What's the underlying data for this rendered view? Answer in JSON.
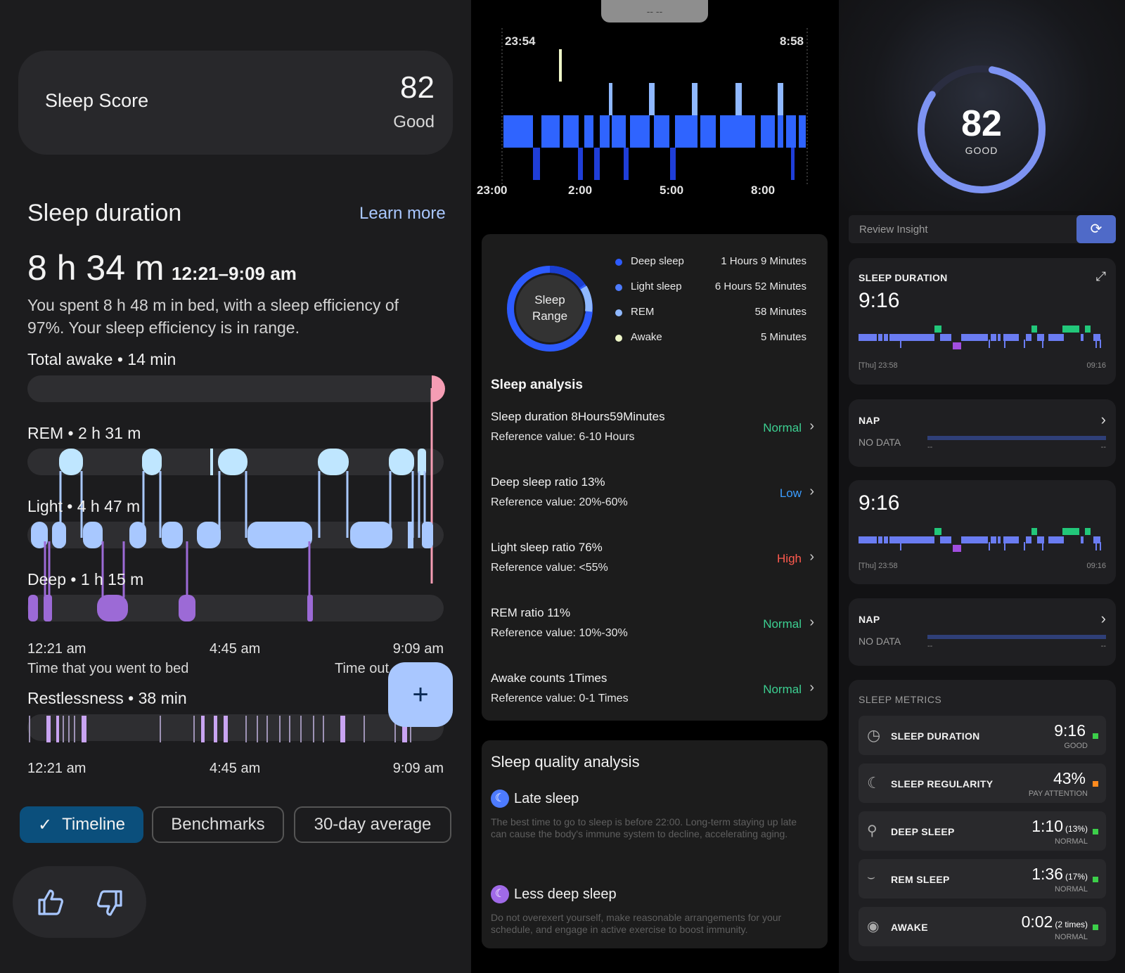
{
  "left": {
    "score_label": "Sleep Score",
    "score_value": "82",
    "score_rating": "Good",
    "duration_title": "Sleep duration",
    "learn_more": "Learn more",
    "duration_value": "8 h 34 m",
    "duration_range": "12:21–9:09 am",
    "description_line1": "You spent 8 h 48 m in bed, with a sleep efficiency of",
    "description_line2": "97%. Your sleep efficiency is in range.",
    "awake_label": "Total awake • 14 min",
    "rem_label": "REM • 2 h 31 m",
    "light_label": "Light • 4 h 47 m",
    "deep_label": "Deep • 1 h 15 m",
    "time_start": "12:21 am",
    "time_mid": "4:45 am",
    "time_end": "9:09 am",
    "bed_caption": "Time that you went to bed",
    "out_caption": "Time out",
    "restless_label": "Restlessness • 38 min",
    "tabs": [
      "Timeline",
      "Benchmarks",
      "30-day average"
    ],
    "fab_glyph": "+",
    "colors": {
      "rem": "#bfe6ff",
      "light": "#a8c8ff",
      "deep": "#9c6ad6",
      "awake": "#f59db4",
      "tab_active": "#0b4f7c"
    }
  },
  "middle": {
    "top_handle": "-- --",
    "chart_start_time": "23:54",
    "chart_end_time": "8:58",
    "axis_labels": [
      "23:00",
      "2:00",
      "5:00",
      "8:00"
    ],
    "ring_label_1": "Sleep",
    "ring_label_2": "Range",
    "legend": [
      {
        "name": "Deep sleep",
        "value": "1 Hours 9 Minutes",
        "color": "#2d5bff"
      },
      {
        "name": "Light sleep",
        "value": "6 Hours 52 Minutes",
        "color": "#4d7bff"
      },
      {
        "name": "REM",
        "value": "58 Minutes",
        "color": "#8fb8ff"
      },
      {
        "name": "Awake",
        "value": "5 Minutes",
        "color": "#eef6c8"
      }
    ],
    "analysis_title": "Sleep analysis",
    "analysis": [
      {
        "label": "Sleep duration  8Hours59Minutes",
        "ref": "Reference value:  6-10 Hours",
        "status": "Normal",
        "color": "#3ccf91"
      },
      {
        "label": "Deep sleep ratio  13%",
        "ref": "Reference value:  20%-60%",
        "status": "Low",
        "color": "#3b9dff"
      },
      {
        "label": "Light sleep ratio  76%",
        "ref": "Reference value:  <55%",
        "status": "High",
        "color": "#ff5a4e"
      },
      {
        "label": "REM ratio  11%",
        "ref": "Reference value:  10%-30%",
        "status": "Normal",
        "color": "#3ccf91"
      },
      {
        "label": "Awake counts  1Times",
        "ref": "Reference value:  0-1 Times",
        "status": "Normal",
        "color": "#3ccf91"
      }
    ],
    "quality_title": "Sleep quality analysis",
    "quality": [
      {
        "title": "Late sleep",
        "text": "The best time to go to sleep is before 22:00. Long-term staying up late can cause the body's immune system to decline, accelerating aging."
      },
      {
        "title": "Less deep sleep",
        "text": "Do not overexert yourself, make reasonable arrangements for your schedule, and engage in active exercise to boost immunity."
      }
    ]
  },
  "right": {
    "ring_value": "82",
    "ring_rating": "GOOD",
    "review_insight": "Review Insight",
    "duration_title": "SLEEP DURATION",
    "duration_value": "9:16",
    "hypno_start": "[Thu] 23:58",
    "hypno_end": "09:16",
    "nap_title": "NAP",
    "nap_no_data": "NO DATA",
    "nap_dash": "--",
    "second_value": "9:16",
    "metrics_title": "SLEEP METRICS",
    "metrics": [
      {
        "icon": "clock-icon",
        "name": "SLEEP DURATION",
        "value": "9:16",
        "extra": "",
        "status": "GOOD",
        "dot": "#3ccf4a"
      },
      {
        "icon": "moon-icon",
        "name": "SLEEP REGULARITY",
        "value": "43%",
        "extra": "",
        "status": "PAY ATTENTION",
        "dot": "#ff8a1e"
      },
      {
        "icon": "deep-sleep-icon",
        "name": "DEEP SLEEP",
        "value": "1:10",
        "extra": "(13%)",
        "status": "NORMAL",
        "dot": "#3ccf4a"
      },
      {
        "icon": "closed-eye-icon",
        "name": "REM SLEEP",
        "value": "1:36",
        "extra": "(17%)",
        "status": "NORMAL",
        "dot": "#3ccf4a"
      },
      {
        "icon": "eye-icon",
        "name": "AWAKE",
        "value": "0:02",
        "extra": "(2 times)",
        "status": "NORMAL",
        "dot": "#3ccf4a"
      }
    ]
  }
}
